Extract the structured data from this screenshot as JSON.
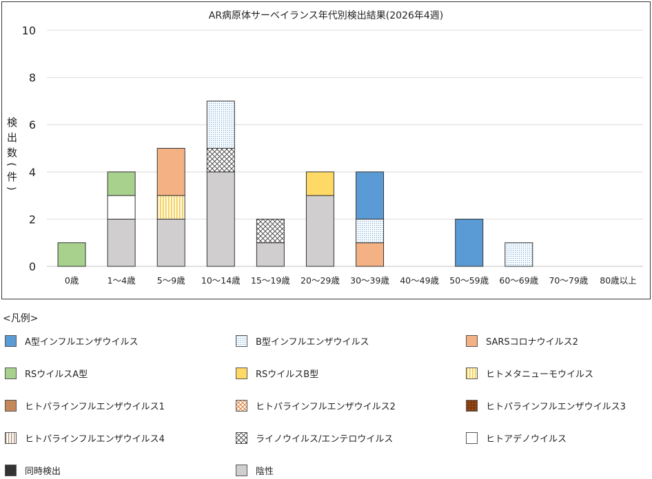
{
  "chart_data": {
    "type": "bar",
    "stacked": true,
    "title": "AR病原体サーベイランス年代別検出結果(2026年4週)",
    "ylabel": "検出数(件)",
    "ylabel_chars": [
      "検",
      "出",
      "数",
      "(件)"
    ],
    "xlabel": "",
    "ylim": [
      0,
      10
    ],
    "yticks": [
      0,
      2,
      4,
      6,
      8,
      10
    ],
    "grid": true,
    "categories": [
      "0歳",
      "1～4歳",
      "5～9歳",
      "10～14歳",
      "15～19歳",
      "20～29歳",
      "30～39歳",
      "40～49歳",
      "50～59歳",
      "60～69歳",
      "70～79歳",
      "80歳以上"
    ],
    "series": [
      {
        "name": "陰性",
        "key": "neg",
        "values": [
          0,
          2,
          2,
          4,
          1,
          3,
          0,
          0,
          0,
          0,
          0,
          0
        ]
      },
      {
        "name": "ヒトアデノウイルス",
        "key": "adeno",
        "values": [
          0,
          1,
          0,
          0,
          0,
          0,
          0,
          0,
          0,
          0,
          0,
          0
        ]
      },
      {
        "name": "ライノウイルス/エンテロウイルス",
        "key": "rhino",
        "values": [
          0,
          0,
          0,
          1,
          1,
          0,
          0,
          0,
          0,
          0,
          0,
          0
        ]
      },
      {
        "name": "ヒトメタニューモウイルス",
        "key": "hmpv",
        "values": [
          0,
          0,
          1,
          0,
          0,
          0,
          0,
          0,
          0,
          0,
          0,
          0
        ]
      },
      {
        "name": "SARSコロナウイルス2",
        "key": "sars",
        "values": [
          0,
          0,
          2,
          0,
          0,
          0,
          1,
          0,
          0,
          0,
          0,
          0
        ]
      },
      {
        "name": "B型インフルエンザウイルス",
        "key": "flub",
        "values": [
          0,
          0,
          0,
          2,
          0,
          0,
          1,
          0,
          0,
          1,
          0,
          0
        ]
      },
      {
        "name": "A型インフルエンザウイルス",
        "key": "flua",
        "values": [
          0,
          0,
          0,
          0,
          0,
          0,
          2,
          0,
          2,
          0,
          0,
          0
        ]
      },
      {
        "name": "RSウイルスA型",
        "key": "rsa",
        "values": [
          1,
          1,
          0,
          0,
          0,
          0,
          0,
          0,
          0,
          0,
          0,
          0
        ]
      },
      {
        "name": "RSウイルスB型",
        "key": "rsb",
        "values": [
          0,
          0,
          0,
          0,
          0,
          1,
          0,
          0,
          0,
          0,
          0,
          0
        ]
      }
    ],
    "legend_title": "<凡例>",
    "legend": [
      {
        "name": "A型インフルエンザウイルス",
        "key": "flua"
      },
      {
        "name": "B型インフルエンザウイルス",
        "key": "flub"
      },
      {
        "name": "SARSコロナウイルス2",
        "key": "sars"
      },
      {
        "name": "RSウイルスA型",
        "key": "rsa"
      },
      {
        "name": "RSウイルスB型",
        "key": "rsb"
      },
      {
        "name": "ヒトメタニューモウイルス",
        "key": "hmpv"
      },
      {
        "name": "ヒトパラインフルエンザウイルス1",
        "key": "piv1"
      },
      {
        "name": "ヒトパラインフルエンザウイルス2",
        "key": "piv2"
      },
      {
        "name": "ヒトパラインフルエンザウイルス3",
        "key": "piv3"
      },
      {
        "name": "ヒトパラインフルエンザウイルス4",
        "key": "piv4"
      },
      {
        "name": "ライノウイルス/エンテロウイルス",
        "key": "rhino"
      },
      {
        "name": "ヒトアデノウイルス",
        "key": "adeno"
      },
      {
        "name": "同時検出",
        "key": "co"
      },
      {
        "name": "陰性",
        "key": "neg"
      }
    ],
    "colors": {
      "flua": "#5b9bd5",
      "flub": "#ddebf7",
      "sars": "#f4b183",
      "rsa": "#a9d18e",
      "rsb": "#ffd966",
      "hmpv": "#fff2cc",
      "piv1": "#c5885a",
      "piv2": "#f4b183",
      "piv3": "#843c0c",
      "piv4": "#e7d6c9",
      "rhino": "#ffffff",
      "adeno": "#ffffff",
      "co": "#333333",
      "neg": "#d0cece"
    }
  }
}
